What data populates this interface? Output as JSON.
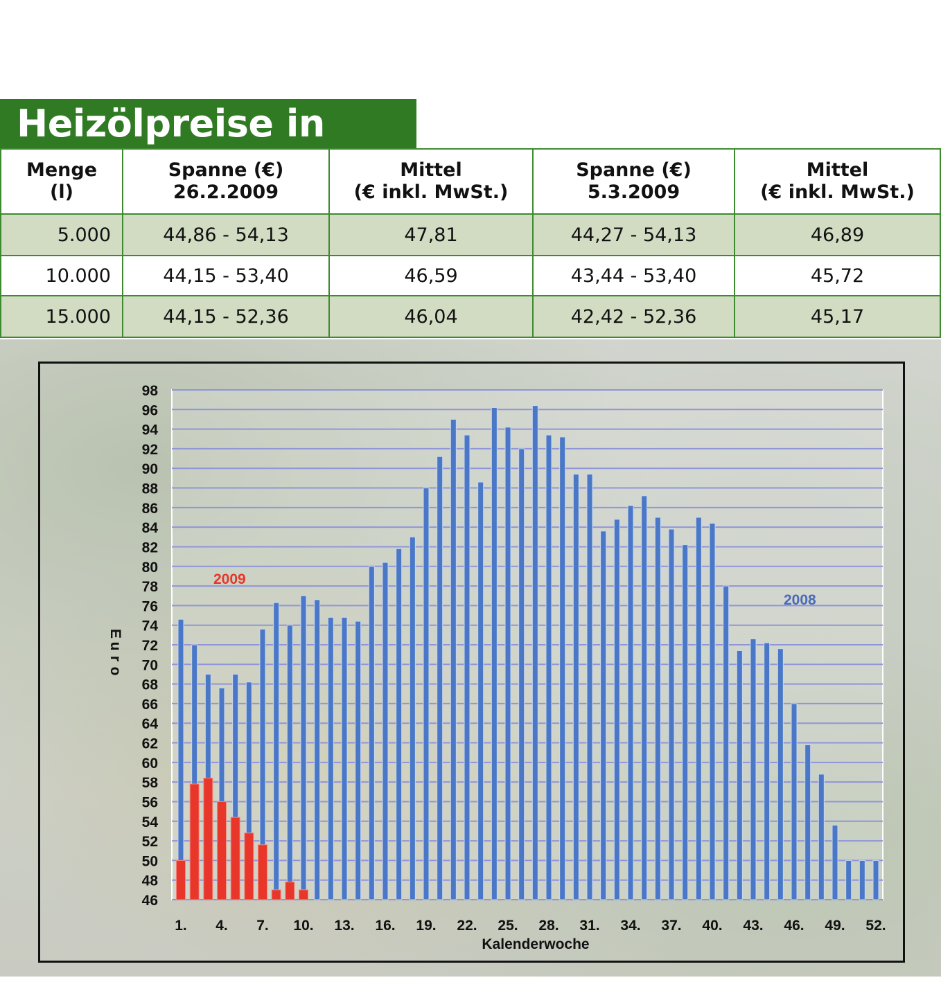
{
  "title": "Heizölpreise in Berlin",
  "table": {
    "headers": [
      [
        "Menge",
        "(l)"
      ],
      [
        "Spanne (€)",
        "26.2.2009"
      ],
      [
        "Mittel",
        "(€ inkl. MwSt.)"
      ],
      [
        "Spanne (€)",
        "5.3.2009"
      ],
      [
        "Mittel",
        "(€ inkl. MwSt.)"
      ]
    ],
    "rows": [
      [
        "5.000",
        "44,86 - 54,13",
        "47,81",
        "44,27 - 54,13",
        "46,89"
      ],
      [
        "10.000",
        "44,15 - 53,40",
        "46,59",
        "43,44 - 53,40",
        "45,72"
      ],
      [
        "15.000",
        "44,15 - 52,36",
        "46,04",
        "42,42 - 52,36",
        "45,17"
      ]
    ]
  },
  "chart_data": {
    "type": "bar",
    "xlabel": "Kalenderwoche",
    "ylabel": "Euro",
    "ylim": [
      46,
      98
    ],
    "yticks": [
      46,
      48,
      50,
      52,
      54,
      56,
      58,
      60,
      62,
      64,
      66,
      68,
      70,
      72,
      74,
      76,
      78,
      80,
      82,
      84,
      86,
      88,
      90,
      92,
      94,
      96,
      98
    ],
    "xticks": [
      "1.",
      "4.",
      "7.",
      "10.",
      "13.",
      "16.",
      "19.",
      "22.",
      "25.",
      "28.",
      "31.",
      "34.",
      "37.",
      "40.",
      "43.",
      "46.",
      "49.",
      "52."
    ],
    "grid": true,
    "series": [
      {
        "name": "2008",
        "color": "#4a78c6",
        "x": [
          1,
          2,
          3,
          4,
          5,
          6,
          7,
          8,
          9,
          10,
          11,
          12,
          13,
          14,
          15,
          16,
          17,
          18,
          19,
          20,
          21,
          22,
          23,
          24,
          25,
          26,
          27,
          28,
          29,
          30,
          31,
          32,
          33,
          34,
          35,
          36,
          37,
          38,
          39,
          40,
          41,
          42,
          43,
          44,
          45,
          46,
          47,
          48,
          49,
          50,
          51,
          52
        ],
        "values": [
          74.6,
          72.0,
          69.0,
          67.6,
          69.0,
          68.2,
          73.6,
          76.3,
          74.0,
          77.0,
          76.6,
          74.8,
          74.8,
          74.4,
          80.0,
          80.4,
          81.8,
          83.0,
          88.0,
          91.2,
          95.0,
          93.4,
          88.6,
          96.2,
          94.2,
          92.0,
          96.4,
          93.4,
          93.2,
          89.4,
          89.4,
          83.6,
          84.8,
          86.2,
          87.2,
          85.0,
          83.8,
          82.2,
          85.0,
          84.4,
          78.0,
          71.4,
          72.6,
          72.2,
          71.6,
          66.0,
          61.8,
          58.8,
          53.6,
          50.0,
          50.0,
          50.0
        ]
      },
      {
        "name": "2009",
        "color": "#e8362a",
        "x": [
          1,
          2,
          3,
          4,
          5,
          6,
          7,
          8,
          9,
          10
        ],
        "values": [
          50.0,
          57.8,
          58.4,
          56.0,
          54.4,
          52.8,
          51.6,
          47.0,
          47.8,
          47.0
        ]
      }
    ]
  }
}
